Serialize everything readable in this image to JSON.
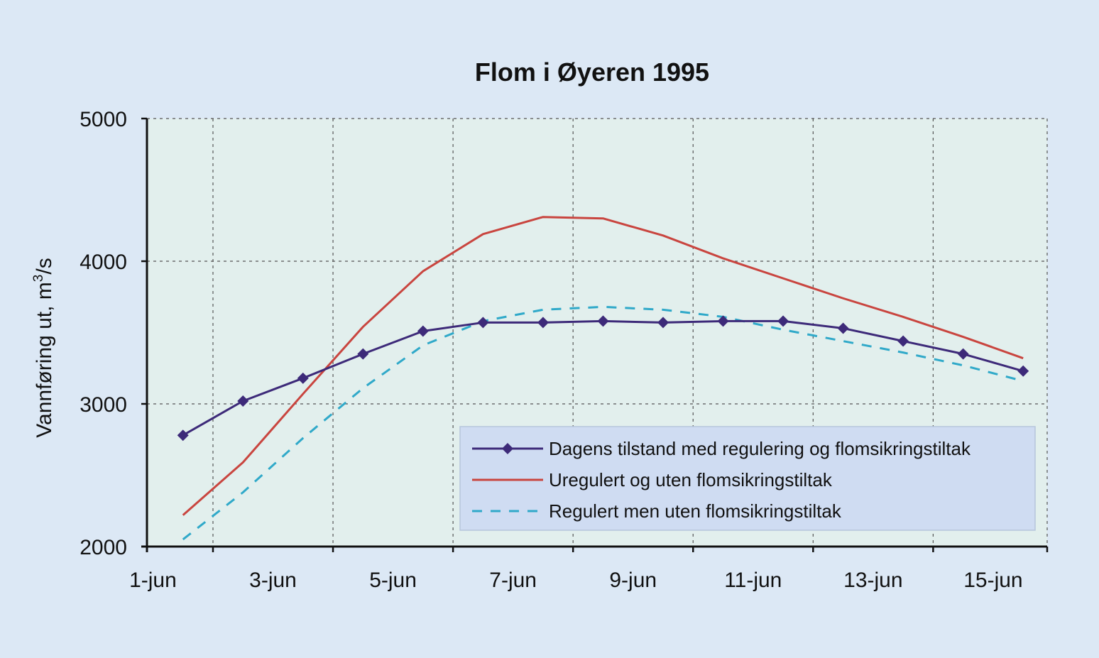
{
  "colors": {
    "page_bg": "#dce8f5",
    "plot_bg": "#e2efed",
    "legend_bg": "#cfdcf2",
    "grid": "#555555",
    "series_dagens": "#3d2a79",
    "series_uregulert": "#c9453f",
    "series_regulert": "#30a9c9"
  },
  "chart_data": {
    "type": "line",
    "title": "Flom i Øyeren 1995",
    "ylabel_main": "Vannføring ut, m",
    "ylabel_sup": "3",
    "ylabel_tail": "/s",
    "xlabel": "",
    "x_domain": [
      0.9,
      15.9
    ],
    "ylim": [
      2000,
      5000
    ],
    "y_ticks": [
      2000,
      3000,
      4000,
      5000
    ],
    "x_ticks": [
      {
        "pos": 1,
        "label": "1-jun"
      },
      {
        "pos": 3,
        "label": "3-jun"
      },
      {
        "pos": 5,
        "label": "5-jun"
      },
      {
        "pos": 7,
        "label": "7-jun"
      },
      {
        "pos": 9,
        "label": "9-jun"
      },
      {
        "pos": 11,
        "label": "11-jun"
      },
      {
        "pos": 13,
        "label": "13-jun"
      },
      {
        "pos": 15,
        "label": "15-jun"
      }
    ],
    "x_grid": [
      2,
      4,
      6,
      8,
      10,
      12,
      14
    ],
    "x": [
      1.5,
      2.5,
      3.5,
      4.5,
      5.5,
      6.5,
      7.5,
      8.5,
      9.5,
      10.5,
      11.5,
      12.5,
      13.5,
      14.5,
      15.5
    ],
    "grid": true,
    "legend_position": "bottom-right",
    "series": [
      {
        "name": "Dagens tilstand med regulering og flomsikringstiltak",
        "key": "dagens",
        "style": "solid-marker",
        "values": [
          2780,
          3020,
          3180,
          3350,
          3510,
          3570,
          3570,
          3580,
          3570,
          3580,
          3580,
          3530,
          3440,
          3350,
          3230
        ]
      },
      {
        "name": "Uregulert og uten flomsikringstiltak",
        "key": "uregulert",
        "style": "solid",
        "values": [
          2220,
          2590,
          3070,
          3540,
          3930,
          4190,
          4310,
          4300,
          4180,
          4020,
          3880,
          3740,
          3610,
          3470,
          3320
        ]
      },
      {
        "name": "Regulert men uten flomsikringstiltak",
        "key": "regulert",
        "style": "dashed",
        "values": [
          2050,
          2380,
          2760,
          3110,
          3410,
          3580,
          3660,
          3680,
          3660,
          3610,
          3520,
          3440,
          3360,
          3270,
          3160
        ]
      }
    ]
  }
}
